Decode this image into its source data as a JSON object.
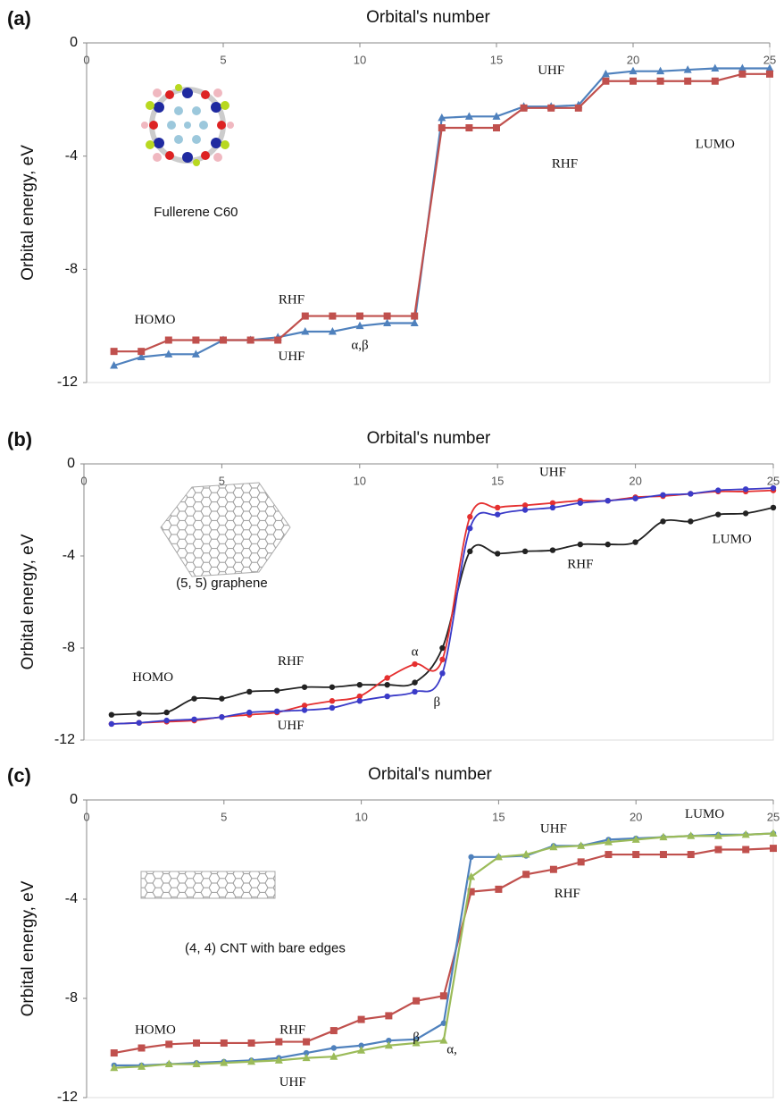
{
  "chart_data": [
    {
      "type": "line",
      "panel_label": "(a)",
      "title": "Orbital's number",
      "y_label": "Orbital energy, eV",
      "x": [
        1,
        2,
        3,
        4,
        5,
        6,
        7,
        8,
        9,
        10,
        11,
        12,
        13,
        14,
        15,
        16,
        17,
        18,
        19,
        20,
        21,
        22,
        23,
        24,
        25
      ],
      "series": [
        {
          "color": "#4f81bd",
          "marker": "triangle",
          "values": [
            -11.4,
            -11.1,
            -11.0,
            -11.0,
            -10.5,
            -10.5,
            -10.4,
            -10.2,
            -10.2,
            -10.0,
            -9.9,
            -9.9,
            -2.65,
            -2.6,
            -2.6,
            -2.25,
            -2.25,
            -2.2,
            -1.1,
            -1.0,
            -1.0,
            -0.95,
            -0.9,
            -0.9,
            -0.9
          ]
        },
        {
          "color": "#c0504d",
          "marker": "square",
          "values": [
            -10.9,
            -10.9,
            -10.5,
            -10.5,
            -10.5,
            -10.5,
            -10.5,
            -9.65,
            -9.65,
            -9.65,
            -9.65,
            -9.65,
            -3.0,
            -3.0,
            -3.0,
            -2.3,
            -2.3,
            -2.3,
            -1.35,
            -1.35,
            -1.35,
            -1.35,
            -1.35,
            -1.1,
            -1.1
          ]
        }
      ],
      "xlim": [
        0,
        25
      ],
      "ylim": [
        -12,
        0
      ],
      "xticks": [
        0,
        5,
        10,
        15,
        20,
        25
      ],
      "yticks": [
        0,
        -4,
        -8,
        -12
      ],
      "smooth": false,
      "annotations": [
        {
          "text": "UHF",
          "x": 17,
          "y": -1.0
        },
        {
          "text": "RHF",
          "x": 17.5,
          "y": -4.3
        },
        {
          "text": "LUMO",
          "x": 23,
          "y": -3.6
        },
        {
          "text": "HOMO",
          "x": 2.5,
          "y": -9.8
        },
        {
          "text": "RHF",
          "x": 7.5,
          "y": -9.1
        },
        {
          "text": "UHF",
          "x": 7.5,
          "y": -11.1
        },
        {
          "text": "α,β",
          "x": 10,
          "y": -10.7
        },
        {
          "text": "Fullerene C60",
          "x": 4,
          "y": -6.0,
          "color": "#4a4ad0"
        }
      ]
    },
    {
      "type": "line",
      "panel_label": "(b)",
      "title": "Orbital's number",
      "y_label": "Orbital energy, eV",
      "x": [
        1,
        2,
        3,
        4,
        5,
        6,
        7,
        8,
        9,
        10,
        11,
        12,
        13,
        14,
        15,
        16,
        17,
        18,
        19,
        20,
        21,
        22,
        23,
        24,
        25
      ],
      "series": [
        {
          "color": "#222222",
          "marker": "circle",
          "values": [
            -10.9,
            -10.85,
            -10.8,
            -10.2,
            -10.2,
            -9.9,
            -9.85,
            -9.7,
            -9.7,
            -9.6,
            -9.6,
            -9.5,
            -8.0,
            -3.8,
            -3.9,
            -3.8,
            -3.75,
            -3.5,
            -3.5,
            -3.4,
            -2.5,
            -2.5,
            -2.2,
            -2.15,
            -1.9
          ]
        },
        {
          "color": "#e53030",
          "marker": "circle",
          "values": [
            -11.3,
            -11.25,
            -11.2,
            -11.15,
            -11.0,
            -10.9,
            -10.8,
            -10.5,
            -10.3,
            -10.1,
            -9.3,
            -8.7,
            -8.5,
            -2.3,
            -1.9,
            -1.8,
            -1.7,
            -1.6,
            -1.6,
            -1.45,
            -1.4,
            -1.3,
            -1.2,
            -1.2,
            -1.15
          ]
        },
        {
          "color": "#3b3bc8",
          "marker": "circle",
          "values": [
            -11.3,
            -11.25,
            -11.15,
            -11.1,
            -11.0,
            -10.8,
            -10.75,
            -10.7,
            -10.6,
            -10.3,
            -10.1,
            -9.9,
            -9.1,
            -2.8,
            -2.2,
            -2.0,
            -1.9,
            -1.7,
            -1.6,
            -1.5,
            -1.35,
            -1.3,
            -1.15,
            -1.1,
            -1.05
          ]
        }
      ],
      "xlim": [
        0,
        25
      ],
      "ylim": [
        -12,
        0
      ],
      "xticks": [
        0,
        5,
        10,
        15,
        20,
        25
      ],
      "yticks": [
        0,
        -4,
        -8,
        -12
      ],
      "smooth": true,
      "annotations": [
        {
          "text": "UHF",
          "x": 17,
          "y": -0.4
        },
        {
          "text": "LUMO",
          "x": 23.5,
          "y": -3.3
        },
        {
          "text": "RHF",
          "x": 18,
          "y": -4.4
        },
        {
          "text": "HOMO",
          "x": 2.5,
          "y": -9.3
        },
        {
          "text": "RHF",
          "x": 7.5,
          "y": -8.6
        },
        {
          "text": "α",
          "x": 12,
          "y": -8.2
        },
        {
          "text": "β",
          "x": 12.8,
          "y": -10.4
        },
        {
          "text": "UHF",
          "x": 7.5,
          "y": -11.4
        },
        {
          "text": "(5, 5) graphene",
          "x": 5,
          "y": -5.2,
          "color": "#4a4ad0"
        }
      ]
    },
    {
      "type": "line",
      "panel_label": "(c)",
      "title": "Orbital's number",
      "y_label": "Orbital energy, eV",
      "x": [
        1,
        2,
        3,
        4,
        5,
        6,
        7,
        8,
        9,
        10,
        11,
        12,
        13,
        14,
        15,
        16,
        17,
        18,
        19,
        20,
        21,
        22,
        23,
        24,
        25
      ],
      "series": [
        {
          "color": "#c0504d",
          "marker": "square",
          "values": [
            -10.2,
            -10.0,
            -9.85,
            -9.8,
            -9.8,
            -9.8,
            -9.75,
            -9.75,
            -9.3,
            -8.85,
            -8.7,
            -8.1,
            -7.9,
            -3.7,
            -3.6,
            -3.0,
            -2.8,
            -2.5,
            -2.2,
            -2.2,
            -2.2,
            -2.2,
            -2.0,
            -2.0,
            -1.95
          ]
        },
        {
          "color": "#4f81bd",
          "marker": "circle",
          "values": [
            -10.7,
            -10.7,
            -10.65,
            -10.6,
            -10.55,
            -10.5,
            -10.4,
            -10.2,
            -10.0,
            -9.9,
            -9.7,
            -9.65,
            -9.0,
            -2.3,
            -2.3,
            -2.25,
            -1.85,
            -1.85,
            -1.6,
            -1.55,
            -1.5,
            -1.45,
            -1.4,
            -1.4,
            -1.35
          ]
        },
        {
          "color": "#9bbb59",
          "marker": "triangle",
          "values": [
            -10.8,
            -10.75,
            -10.65,
            -10.65,
            -10.6,
            -10.55,
            -10.5,
            -10.4,
            -10.35,
            -10.1,
            -9.9,
            -9.8,
            -9.7,
            -3.1,
            -2.3,
            -2.2,
            -1.9,
            -1.85,
            -1.7,
            -1.6,
            -1.5,
            -1.45,
            -1.45,
            -1.4,
            -1.35
          ]
        }
      ],
      "xlim": [
        0,
        25
      ],
      "ylim": [
        -12,
        0
      ],
      "xticks": [
        0,
        5,
        10,
        15,
        20,
        25
      ],
      "yticks": [
        0,
        -4,
        -8,
        -12
      ],
      "smooth": false,
      "annotations": [
        {
          "text": "UHF",
          "x": 17,
          "y": -1.2
        },
        {
          "text": "LUMO",
          "x": 22.5,
          "y": -0.6
        },
        {
          "text": "RHF",
          "x": 17.5,
          "y": -3.8
        },
        {
          "text": "HOMO",
          "x": 2.5,
          "y": -9.3
        },
        {
          "text": "RHF",
          "x": 7.5,
          "y": -9.3
        },
        {
          "text": "β",
          "x": 12,
          "y": -9.6
        },
        {
          "text": "α,",
          "x": 13.3,
          "y": -10.1
        },
        {
          "text": "UHF",
          "x": 7.5,
          "y": -11.4
        },
        {
          "text": "(4, 4) CNT with bare edges",
          "x": 6.5,
          "y": -6.0,
          "color": "#4a4ad0"
        }
      ]
    }
  ]
}
